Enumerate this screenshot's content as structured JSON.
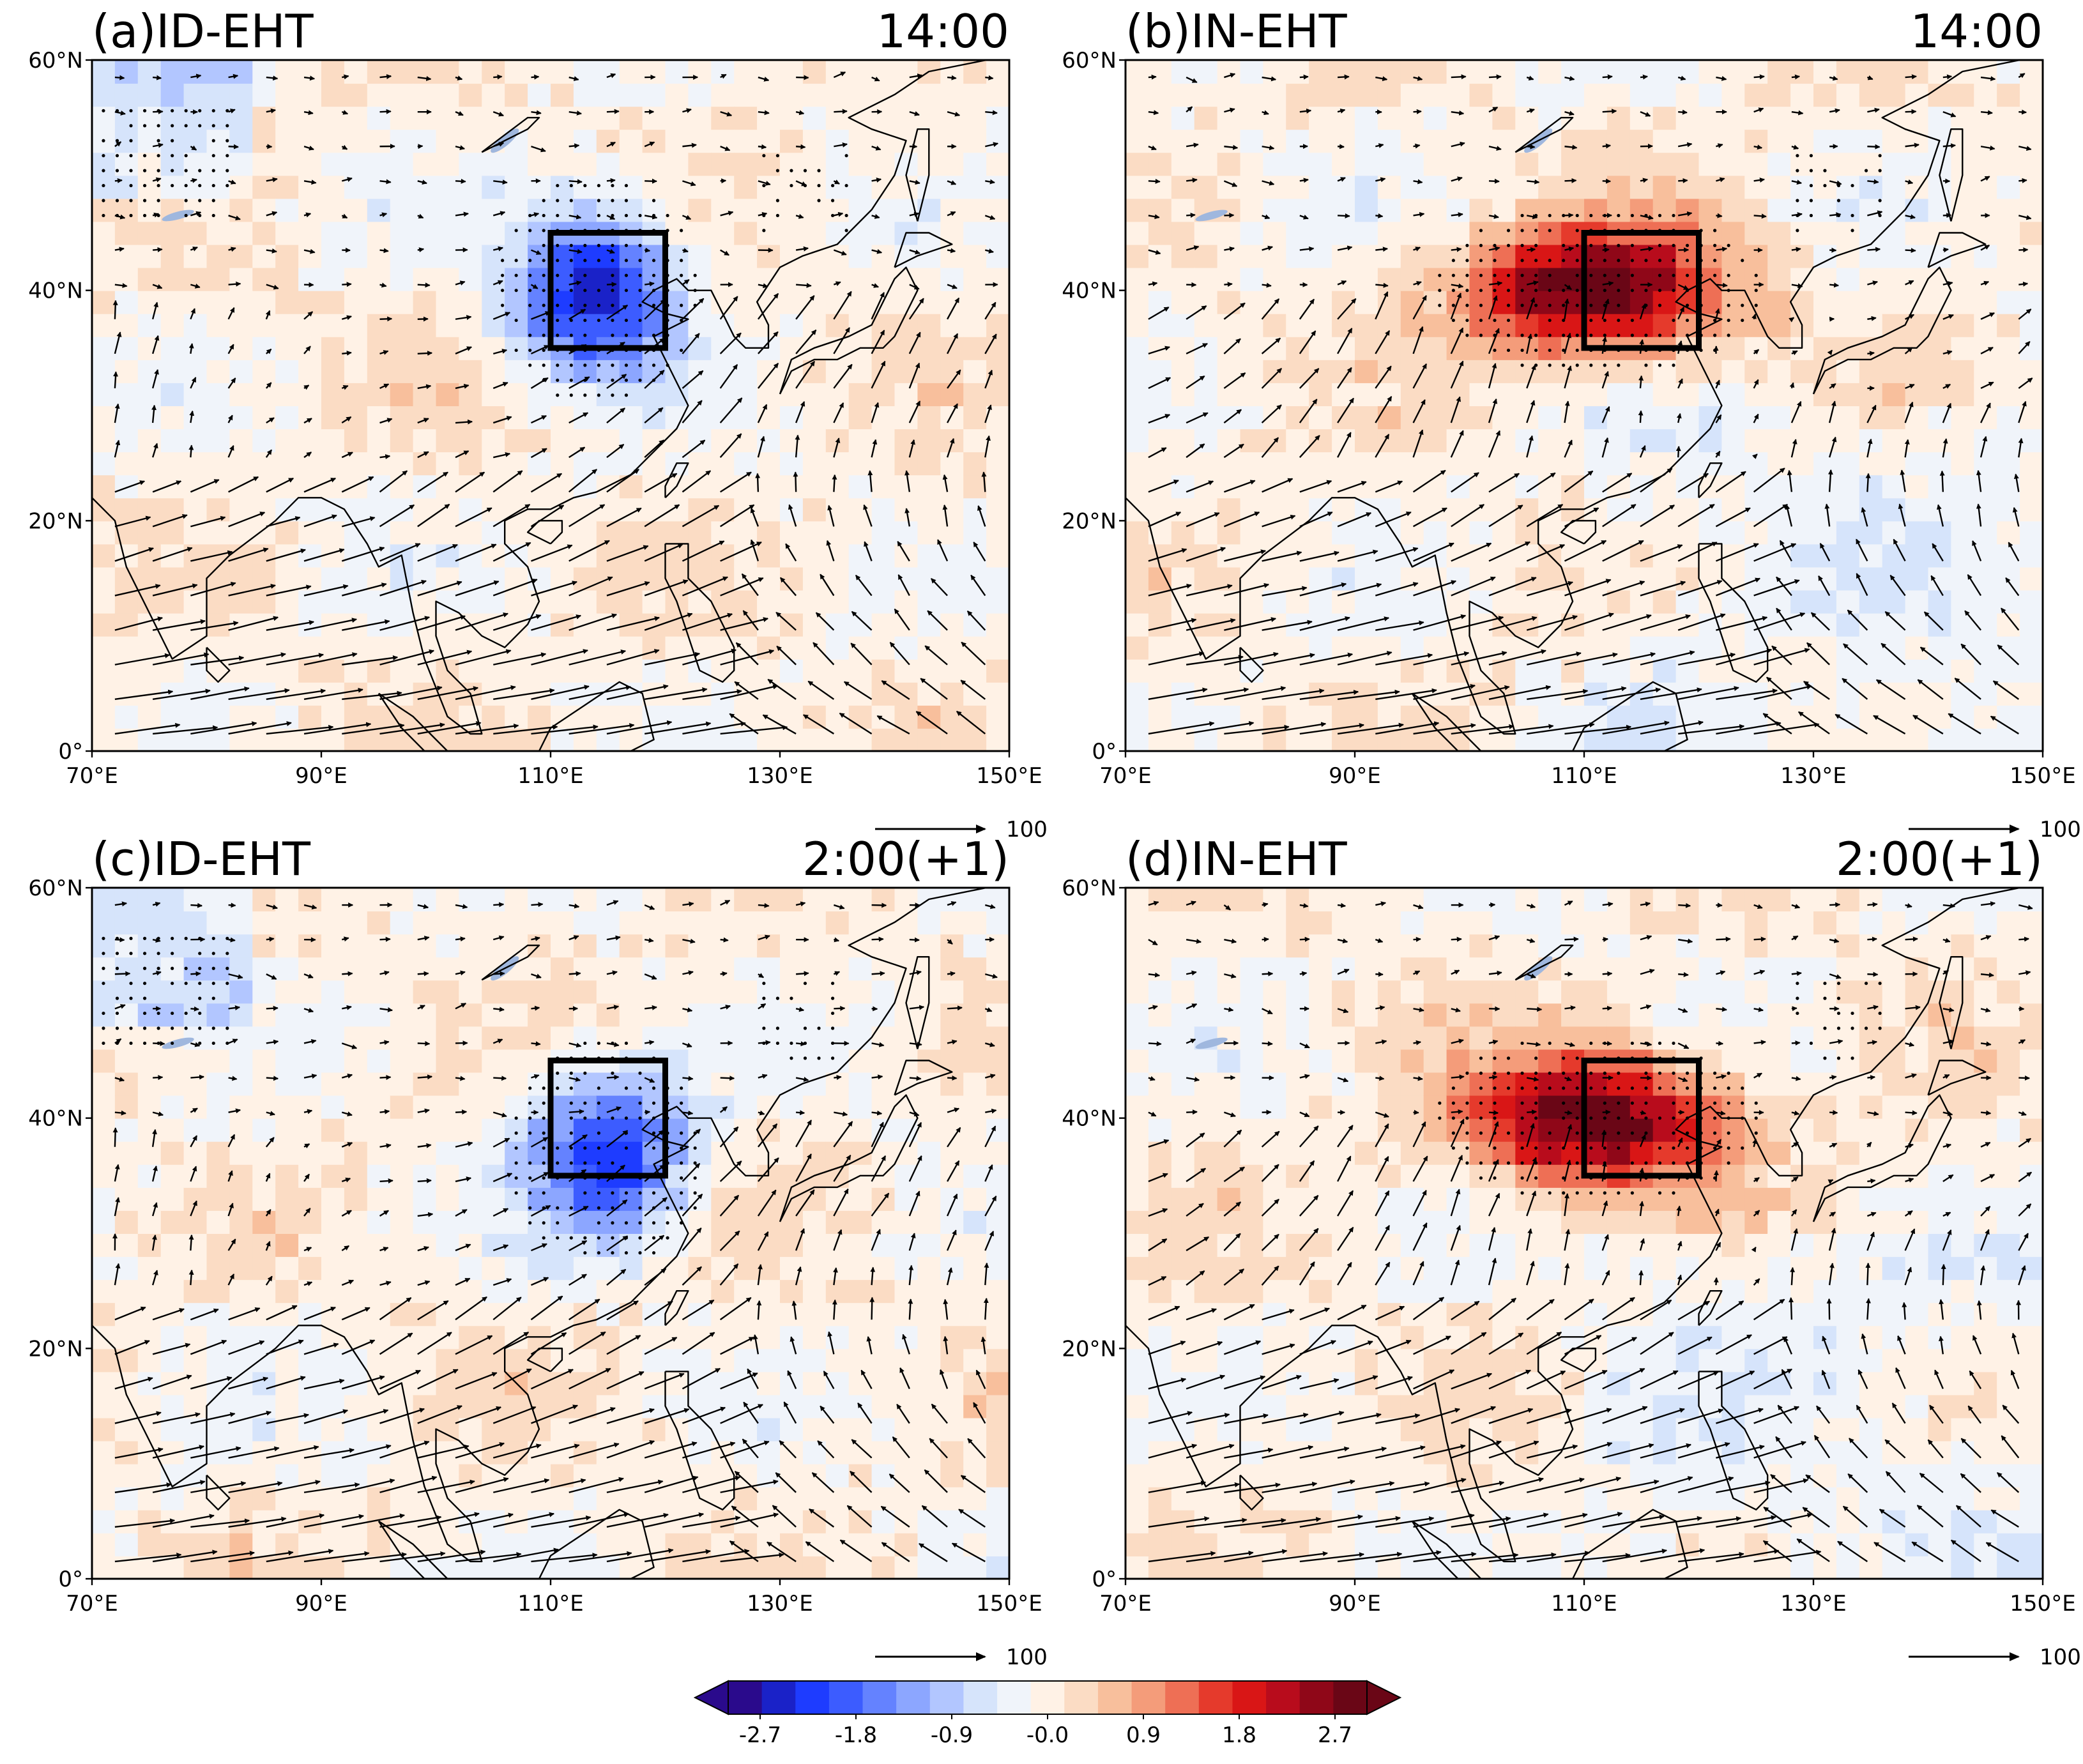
{
  "figure": {
    "panels": [
      {
        "id": "a",
        "title": "(a)ID-EHT",
        "time": "14:00",
        "sign": -1,
        "amp": 2.7,
        "ref_vector": "100"
      },
      {
        "id": "b",
        "title": "(b)IN-EHT",
        "time": "14:00",
        "sign": 1,
        "amp": 3.2,
        "ref_vector": "100"
      },
      {
        "id": "c",
        "title": "(c)ID-EHT",
        "time": "2:00(+1)",
        "sign": -1,
        "amp": 2.3,
        "ref_vector": "100"
      },
      {
        "id": "d",
        "title": "(d)IN-EHT",
        "time": "2:00(+1)",
        "sign": 1,
        "amp": 3.2,
        "ref_vector": "100"
      }
    ],
    "x_ticks": [
      "70°E",
      "90°E",
      "110°E",
      "130°E",
      "150°E"
    ],
    "y_ticks": [
      "60°N",
      "40°N",
      "20°N",
      "0°"
    ],
    "box_region": {
      "lon": [
        110,
        120
      ],
      "lat": [
        35,
        45
      ]
    },
    "colorbar": {
      "ticks": [
        "-2.7",
        "-1.8",
        "-0.9",
        "-0.0",
        "0.9",
        "1.8",
        "2.7"
      ],
      "colors": [
        "#2a0a8c",
        "#1a22c8",
        "#1e3cff",
        "#3c5cff",
        "#6482ff",
        "#8ca6ff",
        "#b2c6ff",
        "#d6e4fb",
        "#f0f4fa",
        "#fff2e6",
        "#fbdcc4",
        "#f8bf9c",
        "#f49c7a",
        "#ee6f55",
        "#e53a2c",
        "#d91616",
        "#b80c1c",
        "#8f0718",
        "#6a0616"
      ]
    }
  },
  "chart_data": {
    "type": "map",
    "description_axes": {
      "lon_range": [
        70,
        150
      ],
      "lat_range": [
        0,
        60
      ]
    },
    "series": [
      {
        "name": "(a)ID-EHT 14:00",
        "anomaly_center": {
          "lon": 113,
          "lat": 40
        },
        "anomaly_peak": -2.7
      },
      {
        "name": "(b)IN-EHT 14:00",
        "anomaly_center": {
          "lon": 110,
          "lat": 40
        },
        "anomaly_peak": 3.2
      },
      {
        "name": "(c)ID-EHT 2:00(+1)",
        "anomaly_center": {
          "lon": 114,
          "lat": 37
        },
        "anomaly_peak": -2.3
      },
      {
        "name": "(d)IN-EHT 2:00(+1)",
        "anomaly_center": {
          "lon": 111,
          "lat": 40
        },
        "anomaly_peak": 3.2
      }
    ],
    "colorbar_range": [
      -3.0,
      3.0
    ],
    "reference_vector": 100
  }
}
